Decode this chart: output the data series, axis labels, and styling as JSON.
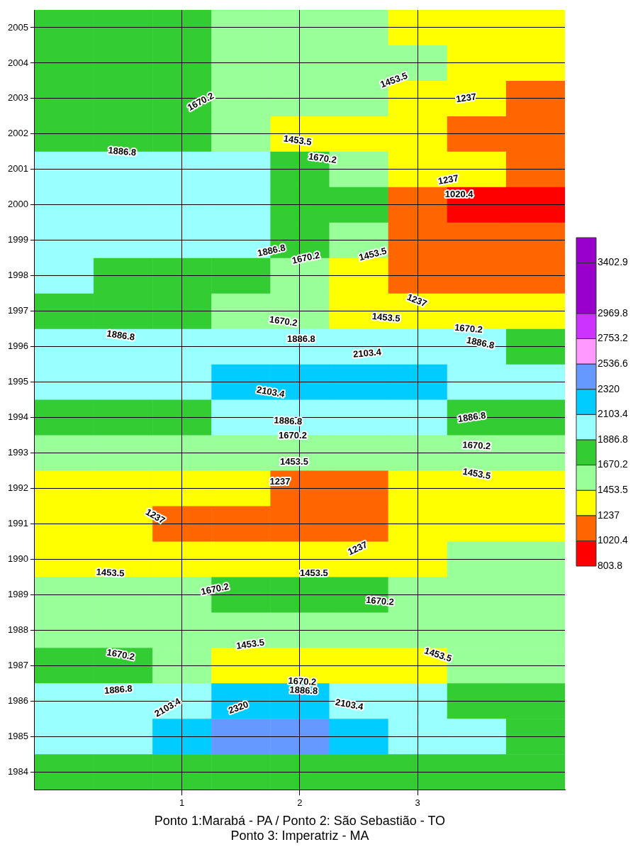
{
  "chart_data": {
    "type": "heatmap",
    "xlabel": "Ponto 1:Marabá - PA / Ponto 2: São Sebastião - TO\nPonto 3: Imperatriz - MA",
    "categories": [
      null,
      null,
      "1",
      null,
      "2",
      null,
      "3",
      null,
      null
    ],
    "y_categories": [
      "2005",
      "2004",
      "2003",
      "2002",
      "2001",
      "2000",
      "1999",
      "1998",
      "1997",
      "1996",
      "1995",
      "1994",
      "1993",
      "1992",
      "1991",
      "1990",
      "1989",
      "1988",
      "1987",
      "1986",
      "1985",
      "1984"
    ],
    "grid": true,
    "clim": [
      803.8,
      3619.5
    ],
    "cticks": [
      803.8,
      1020.4,
      1237,
      1453.5,
      1670.2,
      1886.8,
      2103.4,
      2320,
      2536.6,
      2753.2,
      2969.8,
      3402.9
    ],
    "colors": [
      "#ff0000",
      "#ff6600",
      "#ffff00",
      "#99ff99",
      "#33cc33",
      "#99ffff",
      "#00ccff",
      "#6699ff",
      "#ff99ff",
      "#cc33ff",
      "#9900cc",
      "#9900cc"
    ],
    "cells": [
      [
        1778,
        1778,
        1778,
        1562,
        1562,
        1562,
        1345,
        1345,
        1345
      ],
      [
        1778,
        1778,
        1778,
        1562,
        1562,
        1562,
        1562,
        1345,
        1345
      ],
      [
        1778,
        1778,
        1778,
        1562,
        1562,
        1562,
        1345,
        1345,
        1129
      ],
      [
        1778,
        1778,
        1778,
        1562,
        1345,
        1345,
        1345,
        1129,
        1129
      ],
      [
        1995,
        1995,
        1995,
        1995,
        1778,
        1562,
        1345,
        1345,
        1129
      ],
      [
        1995,
        1995,
        1995,
        1995,
        1778,
        1778,
        1129,
        912,
        912
      ],
      [
        1995,
        1995,
        1995,
        1995,
        1778,
        1562,
        1129,
        1129,
        1129
      ],
      [
        1995,
        1778,
        1778,
        1778,
        1562,
        1345,
        1129,
        1129,
        1129
      ],
      [
        1778,
        1778,
        1778,
        1562,
        1562,
        1345,
        1345,
        1345,
        1345
      ],
      [
        1995,
        1995,
        1995,
        1995,
        1995,
        1995,
        1995,
        1995,
        1778
      ],
      [
        1995,
        1995,
        1995,
        2212,
        2212,
        2212,
        2212,
        1995,
        1995
      ],
      [
        1778,
        1778,
        1778,
        1995,
        1995,
        1995,
        1995,
        1778,
        1778
      ],
      [
        1562,
        1562,
        1562,
        1562,
        1562,
        1562,
        1562,
        1562,
        1562
      ],
      [
        1345,
        1345,
        1345,
        1345,
        1129,
        1129,
        1345,
        1345,
        1345
      ],
      [
        1345,
        1345,
        1129,
        1129,
        1129,
        1129,
        1345,
        1345,
        1345
      ],
      [
        1345,
        1345,
        1345,
        1345,
        1345,
        1345,
        1345,
        1562,
        1562
      ],
      [
        1562,
        1562,
        1562,
        1778,
        1778,
        1778,
        1562,
        1562,
        1562
      ],
      [
        1562,
        1562,
        1562,
        1562,
        1562,
        1562,
        1562,
        1562,
        1562
      ],
      [
        1778,
        1778,
        1562,
        1345,
        1345,
        1345,
        1345,
        1562,
        1562
      ],
      [
        1995,
        1995,
        1995,
        2212,
        2212,
        1995,
        1995,
        1778,
        1778
      ],
      [
        1995,
        1995,
        2212,
        2428,
        2428,
        2212,
        1995,
        1995,
        1778
      ],
      [
        1778,
        1778,
        1778,
        1778,
        1778,
        1778,
        1778,
        1778,
        1778
      ]
    ],
    "annotations": [
      "1670.2",
      "1453.5",
      "1237",
      "1453.5",
      "1886.8",
      "1670.2",
      "1237",
      "1020.4",
      "1886.8",
      "1670.2",
      "1453.5",
      "1237",
      "1670.2",
      "1453.5",
      "1670.2",
      "1886.8",
      "1886.8",
      "1886.8",
      "2103.4",
      "2103.4",
      "1886.8",
      "1886.8",
      "1670.2",
      "1670.2",
      "1453.5",
      "1453.5",
      "1237",
      "1237",
      "1237",
      "1453.5",
      "1453.5",
      "1670.2",
      "1670.2",
      "1453.5",
      "1453.5",
      "1670.2",
      "1670.2",
      "1886.8",
      "1886.8",
      "2103.4",
      "2103.4",
      "2320"
    ]
  }
}
